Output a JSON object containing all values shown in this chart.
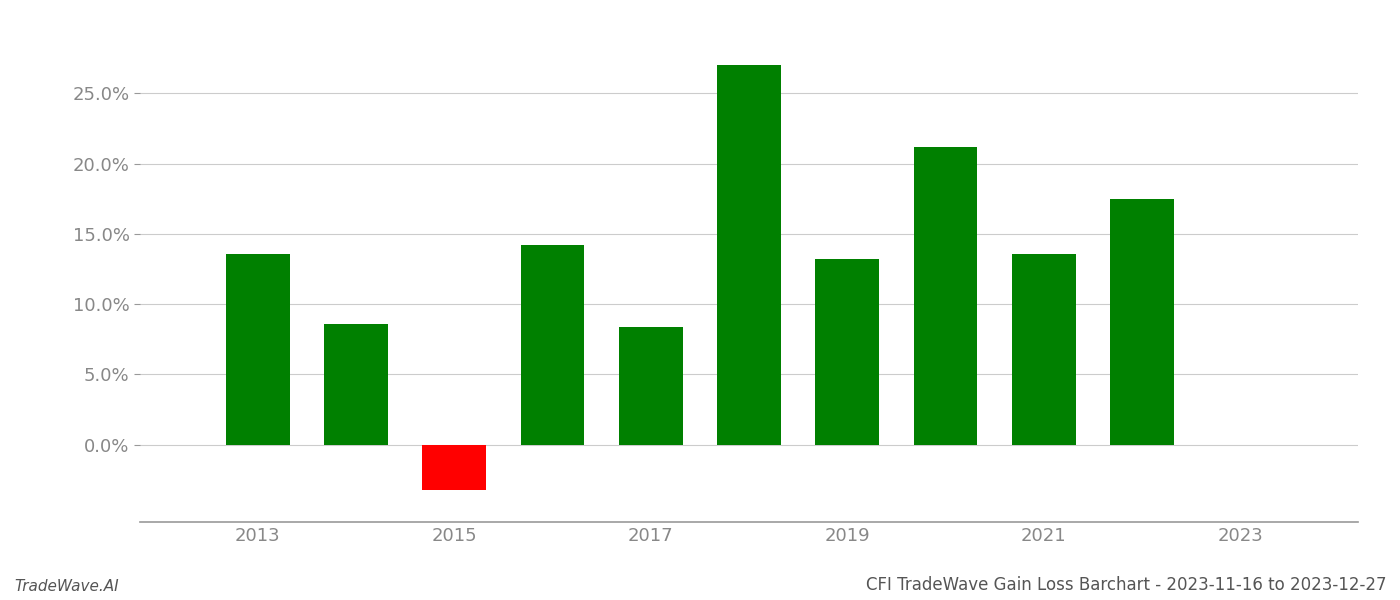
{
  "years": [
    2013,
    2014,
    2015,
    2016,
    2017,
    2018,
    2019,
    2020,
    2021,
    2022
  ],
  "values": [
    0.136,
    0.086,
    -0.032,
    0.142,
    0.084,
    0.27,
    0.132,
    0.212,
    0.136,
    0.175
  ],
  "colors": [
    "#008000",
    "#008000",
    "#ff0000",
    "#008000",
    "#008000",
    "#008000",
    "#008000",
    "#008000",
    "#008000",
    "#008000"
  ],
  "ylim": [
    -0.055,
    0.295
  ],
  "yticks": [
    0.0,
    0.05,
    0.1,
    0.15,
    0.2,
    0.25
  ],
  "xticks": [
    2013,
    2015,
    2017,
    2019,
    2021,
    2023
  ],
  "xlim": [
    2011.8,
    2024.2
  ],
  "bar_width": 0.65,
  "title": "CFI TradeWave Gain Loss Barchart - 2023-11-16 to 2023-12-27",
  "watermark": "TradeWave.AI",
  "bg_color": "#ffffff",
  "grid_color": "#cccccc",
  "axis_color": "#999999",
  "tick_color": "#888888",
  "title_color": "#555555",
  "watermark_color": "#555555",
  "title_fontsize": 12,
  "watermark_fontsize": 11,
  "tick_fontsize": 13
}
